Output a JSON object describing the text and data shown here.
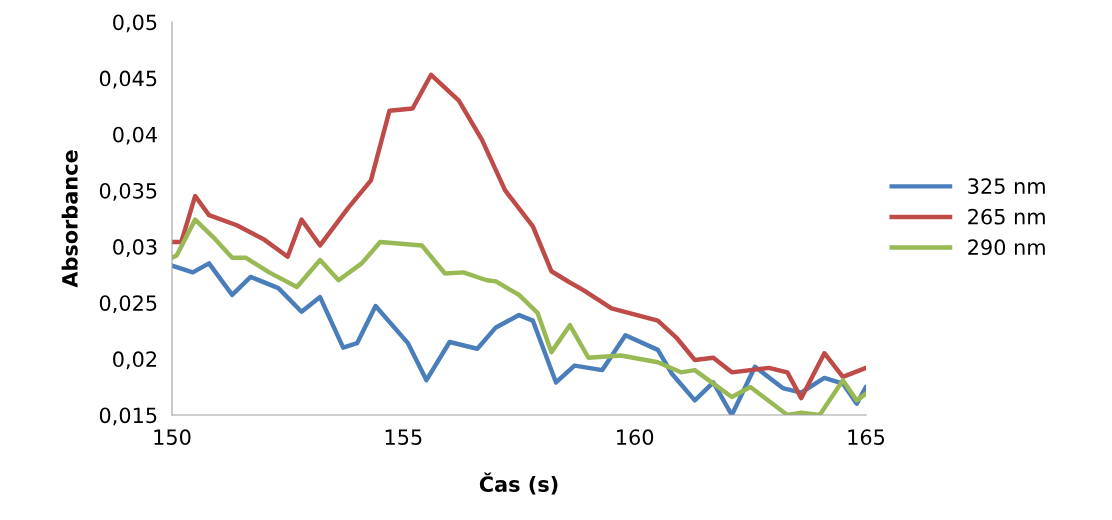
{
  "chart_data": {
    "type": "line",
    "xlabel": "Čas (s)",
    "ylabel": "Absorbance",
    "xlim": [
      150,
      165
    ],
    "xticks": [
      150,
      155,
      160,
      165
    ],
    "ylim": [
      0.015,
      0.05
    ],
    "yticks": [
      {
        "value": 0.015,
        "label": "0,015"
      },
      {
        "value": 0.02,
        "label": "0,02"
      },
      {
        "value": 0.025,
        "label": "0,025"
      },
      {
        "value": 0.03,
        "label": "0,03"
      },
      {
        "value": 0.035,
        "label": "0,035"
      },
      {
        "value": 0.04,
        "label": "0,04"
      },
      {
        "value": 0.045,
        "label": "0,045"
      },
      {
        "value": 0.05,
        "label": "0,05"
      }
    ],
    "grid": false,
    "legend": "right",
    "marker": "none",
    "line_style": "solid",
    "series": [
      {
        "name": "325 nm",
        "color": "#4a7ebb",
        "x": [
          150,
          150.45,
          150.8,
          151.3,
          151.7,
          152.3,
          152.8,
          153.2,
          153.7,
          154.0,
          154.4,
          155.1,
          155.5,
          156.0,
          156.6,
          157.0,
          157.5,
          157.8,
          158.3,
          158.7,
          159.3,
          159.8,
          160.5,
          160.8,
          161.3,
          161.7,
          162.1,
          162.6,
          163.2,
          163.6,
          164.1,
          164.5,
          164.8,
          165.0
        ],
        "values": [
          0.0283,
          0.0277,
          0.0285,
          0.0257,
          0.0273,
          0.0263,
          0.0242,
          0.0255,
          0.021,
          0.0214,
          0.0247,
          0.0214,
          0.0181,
          0.0215,
          0.0209,
          0.0228,
          0.0239,
          0.0234,
          0.0179,
          0.0194,
          0.019,
          0.0221,
          0.0208,
          0.0187,
          0.0163,
          0.0179,
          0.015,
          0.0193,
          0.0174,
          0.017,
          0.0183,
          0.0178,
          0.016,
          0.0175
        ]
      },
      {
        "name": "265 nm",
        "color": "#be4b48",
        "x": [
          150,
          150.2,
          150.5,
          150.8,
          151.4,
          152.0,
          152.5,
          152.8,
          153.2,
          153.8,
          154.3,
          154.7,
          155.2,
          155.6,
          156.2,
          156.7,
          157.2,
          157.8,
          158.2,
          158.6,
          158.9,
          159.5,
          160.5,
          160.9,
          161.3,
          161.7,
          162.1,
          162.9,
          163.3,
          163.6,
          164.1,
          164.5,
          165.0
        ],
        "values": [
          0.0304,
          0.0304,
          0.0345,
          0.0328,
          0.0319,
          0.0306,
          0.0291,
          0.0324,
          0.0301,
          0.0334,
          0.0359,
          0.0421,
          0.0423,
          0.0453,
          0.043,
          0.0395,
          0.035,
          0.0318,
          0.0278,
          0.0268,
          0.0261,
          0.0245,
          0.0234,
          0.0219,
          0.0199,
          0.0201,
          0.0188,
          0.0192,
          0.0188,
          0.0165,
          0.0205,
          0.0184,
          0.0192
        ]
      },
      {
        "name": "290 nm",
        "color": "#98b954",
        "x": [
          150,
          150.1,
          150.5,
          150.9,
          151.3,
          151.6,
          152.1,
          152.7,
          153.2,
          153.6,
          154.1,
          154.5,
          155.4,
          155.9,
          156.3,
          156.8,
          157.0,
          157.5,
          157.9,
          158.2,
          158.6,
          159.0,
          159.7,
          160.5,
          161.0,
          161.3,
          162.1,
          162.5,
          163.3,
          163.6,
          164.0,
          164.5,
          164.8,
          165.0
        ],
        "values": [
          0.029,
          0.0292,
          0.0324,
          0.0308,
          0.029,
          0.029,
          0.0277,
          0.0264,
          0.0288,
          0.027,
          0.0285,
          0.0304,
          0.0301,
          0.0276,
          0.0277,
          0.027,
          0.0269,
          0.0257,
          0.0241,
          0.0206,
          0.023,
          0.0201,
          0.0203,
          0.0197,
          0.0188,
          0.019,
          0.0166,
          0.0175,
          0.015,
          0.0152,
          0.015,
          0.0181,
          0.0163,
          0.0169
        ]
      }
    ]
  }
}
